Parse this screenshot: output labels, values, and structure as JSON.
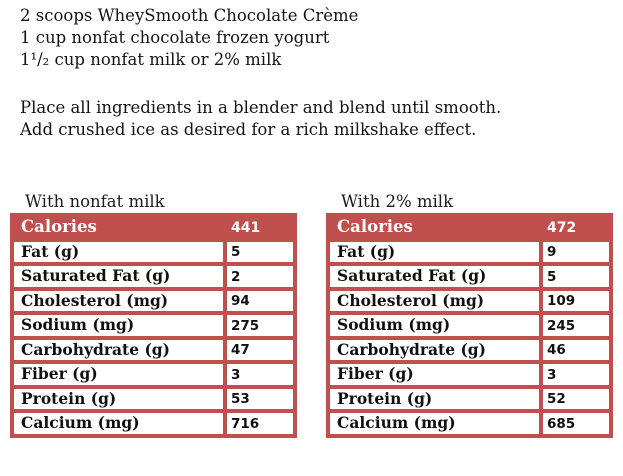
{
  "colors": {
    "table_red": "#C0504D",
    "header_text": "#ffffff",
    "body_text": "#141414",
    "page_background": "#ffffff"
  },
  "recipe": {
    "ingredients": [
      "2 scoops WheySmooth Chocolate Crème",
      "1 cup nonfat chocolate frozen yogurt",
      "1¹/₂ cup nonfat milk or 2% milk"
    ],
    "instructions": [
      "Place all ingredients in a blender and blend until smooth.",
      "Add crushed ice as desired for a rich milkshake effect."
    ]
  },
  "tables": [
    {
      "title": "With nonfat milk",
      "rows": [
        {
          "label": "Calories",
          "value": "441"
        },
        {
          "label": "Fat (g)",
          "value": "5"
        },
        {
          "label": "Saturated Fat (g)",
          "value": "2"
        },
        {
          "label": "Cholesterol (mg)",
          "value": "94"
        },
        {
          "label": "Sodium (mg)",
          "value": "275"
        },
        {
          "label": "Carbohydrate (g)",
          "value": "47"
        },
        {
          "label": "Fiber (g)",
          "value": "3"
        },
        {
          "label": "Protein (g)",
          "value": "53"
        },
        {
          "label": "Calcium (mg)",
          "value": "716"
        }
      ]
    },
    {
      "title": "With 2% milk",
      "rows": [
        {
          "label": "Calories",
          "value": "472"
        },
        {
          "label": "Fat (g)",
          "value": "9"
        },
        {
          "label": "Saturated Fat (g)",
          "value": "5"
        },
        {
          "label": "Cholesterol (mg)",
          "value": "109"
        },
        {
          "label": "Sodium (mg)",
          "value": "245"
        },
        {
          "label": "Carbohydrate (g)",
          "value": "46"
        },
        {
          "label": "Fiber (g)",
          "value": "3"
        },
        {
          "label": "Protein (g)",
          "value": "52"
        },
        {
          "label": "Calcium (mg)",
          "value": "685"
        }
      ]
    }
  ]
}
